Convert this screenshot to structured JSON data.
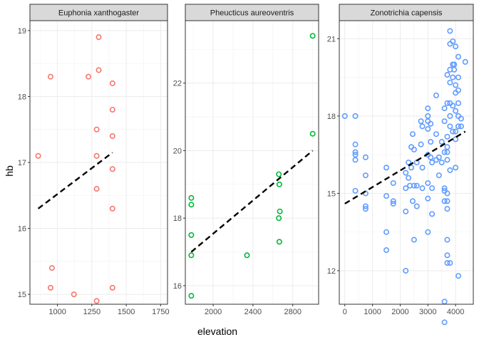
{
  "chart_data": {
    "type": "scatter",
    "layout": "faceted",
    "xlabel": "elevation",
    "ylabel": "hb",
    "grid": true,
    "panels": [
      {
        "title": "Euphonia xanthogaster",
        "color": "#F8766D",
        "xlim": [
          800,
          1800
        ],
        "ylim": [
          14.85,
          19.15
        ],
        "xticks": [
          1000,
          1250,
          1500,
          1750
        ],
        "yticks": [
          15,
          16,
          17,
          18,
          19
        ],
        "points": [
          {
            "x": 1300,
            "y": 18.9
          },
          {
            "x": 950,
            "y": 18.3
          },
          {
            "x": 1225,
            "y": 18.3
          },
          {
            "x": 1300,
            "y": 18.4
          },
          {
            "x": 1400,
            "y": 18.2
          },
          {
            "x": 1400,
            "y": 17.8
          },
          {
            "x": 1285,
            "y": 17.5
          },
          {
            "x": 1400,
            "y": 17.4
          },
          {
            "x": 860,
            "y": 17.1
          },
          {
            "x": 1285,
            "y": 17.1
          },
          {
            "x": 1400,
            "y": 16.9
          },
          {
            "x": 1285,
            "y": 16.6
          },
          {
            "x": 1400,
            "y": 16.3
          },
          {
            "x": 960,
            "y": 15.4
          },
          {
            "x": 950,
            "y": 15.1
          },
          {
            "x": 1400,
            "y": 15.1
          },
          {
            "x": 1120,
            "y": 15.0
          },
          {
            "x": 1285,
            "y": 14.9
          }
        ],
        "fit": {
          "x": [
            860,
            1400
          ],
          "y": [
            16.3,
            17.15
          ]
        }
      },
      {
        "title": "Pheucticus aureoventris",
        "color": "#00BA38",
        "xlim": [
          1720,
          3060
        ],
        "ylim": [
          15.45,
          23.85
        ],
        "xticks": [
          2000,
          2400,
          2800
        ],
        "yticks": [
          16,
          18,
          20,
          22
        ],
        "points": [
          {
            "x": 3000,
            "y": 23.4
          },
          {
            "x": 3000,
            "y": 20.5
          },
          {
            "x": 2660,
            "y": 19.3
          },
          {
            "x": 2665,
            "y": 19.0
          },
          {
            "x": 1780,
            "y": 18.6
          },
          {
            "x": 1780,
            "y": 18.4
          },
          {
            "x": 2670,
            "y": 18.2
          },
          {
            "x": 2660,
            "y": 18.0
          },
          {
            "x": 1780,
            "y": 17.5
          },
          {
            "x": 2665,
            "y": 17.3
          },
          {
            "x": 1780,
            "y": 16.9
          },
          {
            "x": 2340,
            "y": 16.9
          },
          {
            "x": 1780,
            "y": 15.7
          }
        ],
        "fit": {
          "x": [
            1780,
            3000
          ],
          "y": [
            17.0,
            20.0
          ]
        }
      },
      {
        "title": "Zonotrichia capensis",
        "color": "#619CFF",
        "xlim": [
          -200,
          4640
        ],
        "ylim": [
          10.7,
          21.7
        ],
        "xticks": [
          0,
          1000,
          2000,
          3000,
          4000
        ],
        "yticks": [
          12,
          15,
          18,
          21
        ],
        "points": [
          {
            "x": 0,
            "y": 18.0
          },
          {
            "x": 380,
            "y": 18.0
          },
          {
            "x": 380,
            "y": 16.9
          },
          {
            "x": 380,
            "y": 16.6
          },
          {
            "x": 380,
            "y": 16.5
          },
          {
            "x": 380,
            "y": 16.3
          },
          {
            "x": 380,
            "y": 15.1
          },
          {
            "x": 750,
            "y": 16.4
          },
          {
            "x": 750,
            "y": 15.7
          },
          {
            "x": 750,
            "y": 15.0
          },
          {
            "x": 750,
            "y": 14.5
          },
          {
            "x": 750,
            "y": 14.4
          },
          {
            "x": 1500,
            "y": 16.0
          },
          {
            "x": 1500,
            "y": 14.9
          },
          {
            "x": 1500,
            "y": 13.5
          },
          {
            "x": 1500,
            "y": 12.8
          },
          {
            "x": 1750,
            "y": 15.4
          },
          {
            "x": 1750,
            "y": 14.7
          },
          {
            "x": 1750,
            "y": 14.6
          },
          {
            "x": 2200,
            "y": 15.8
          },
          {
            "x": 2200,
            "y": 15.2
          },
          {
            "x": 2200,
            "y": 14.3
          },
          {
            "x": 2200,
            "y": 12.0
          },
          {
            "x": 2300,
            "y": 16.2
          },
          {
            "x": 2300,
            "y": 15.6
          },
          {
            "x": 2350,
            "y": 15.3
          },
          {
            "x": 2400,
            "y": 16.8
          },
          {
            "x": 2400,
            "y": 16.0
          },
          {
            "x": 2450,
            "y": 17.3
          },
          {
            "x": 2450,
            "y": 14.7
          },
          {
            "x": 2500,
            "y": 16.7
          },
          {
            "x": 2500,
            "y": 15.3
          },
          {
            "x": 2500,
            "y": 13.2
          },
          {
            "x": 2600,
            "y": 16.2
          },
          {
            "x": 2600,
            "y": 15.3
          },
          {
            "x": 2600,
            "y": 14.5
          },
          {
            "x": 2750,
            "y": 17.8
          },
          {
            "x": 2750,
            "y": 16.9
          },
          {
            "x": 2800,
            "y": 17.6
          },
          {
            "x": 2800,
            "y": 16.0
          },
          {
            "x": 2800,
            "y": 15.2
          },
          {
            "x": 3000,
            "y": 18.3
          },
          {
            "x": 3000,
            "y": 18.0
          },
          {
            "x": 3000,
            "y": 17.8
          },
          {
            "x": 3000,
            "y": 17.5
          },
          {
            "x": 3000,
            "y": 16.5
          },
          {
            "x": 3000,
            "y": 15.4
          },
          {
            "x": 3000,
            "y": 14.8
          },
          {
            "x": 3000,
            "y": 13.5
          },
          {
            "x": 3100,
            "y": 17.7
          },
          {
            "x": 3100,
            "y": 17.0
          },
          {
            "x": 3100,
            "y": 16.4
          },
          {
            "x": 3150,
            "y": 16.2
          },
          {
            "x": 3150,
            "y": 15.2
          },
          {
            "x": 3150,
            "y": 14.2
          },
          {
            "x": 3300,
            "y": 18.8
          },
          {
            "x": 3300,
            "y": 17.3
          },
          {
            "x": 3300,
            "y": 16.3
          },
          {
            "x": 3400,
            "y": 16.4
          },
          {
            "x": 3400,
            "y": 15.7
          },
          {
            "x": 3500,
            "y": 17.0
          },
          {
            "x": 3500,
            "y": 16.2
          },
          {
            "x": 3600,
            "y": 18.3
          },
          {
            "x": 3600,
            "y": 17.8
          },
          {
            "x": 3600,
            "y": 16.6
          },
          {
            "x": 3600,
            "y": 15.2
          },
          {
            "x": 3600,
            "y": 15.1
          },
          {
            "x": 3600,
            "y": 14.7
          },
          {
            "x": 3600,
            "y": 10.8
          },
          {
            "x": 3600,
            "y": 10.0
          },
          {
            "x": 3700,
            "y": 19.6
          },
          {
            "x": 3700,
            "y": 18.5
          },
          {
            "x": 3700,
            "y": 17.2
          },
          {
            "x": 3700,
            "y": 16.8
          },
          {
            "x": 3700,
            "y": 16.6
          },
          {
            "x": 3700,
            "y": 16.3
          },
          {
            "x": 3700,
            "y": 15.0
          },
          {
            "x": 3700,
            "y": 14.7
          },
          {
            "x": 3700,
            "y": 14.4
          },
          {
            "x": 3700,
            "y": 13.2
          },
          {
            "x": 3700,
            "y": 12.6
          },
          {
            "x": 3700,
            "y": 12.3
          },
          {
            "x": 3800,
            "y": 21.3
          },
          {
            "x": 3800,
            "y": 20.8
          },
          {
            "x": 3800,
            "y": 19.8
          },
          {
            "x": 3800,
            "y": 19.3
          },
          {
            "x": 3800,
            "y": 18.5
          },
          {
            "x": 3800,
            "y": 18.0
          },
          {
            "x": 3800,
            "y": 17.6
          },
          {
            "x": 3800,
            "y": 15.9
          },
          {
            "x": 3800,
            "y": 12.3
          },
          {
            "x": 3900,
            "y": 20.9
          },
          {
            "x": 3900,
            "y": 20.0
          },
          {
            "x": 3900,
            "y": 19.5
          },
          {
            "x": 3900,
            "y": 18.4
          },
          {
            "x": 3900,
            "y": 17.4
          },
          {
            "x": 3950,
            "y": 20.0
          },
          {
            "x": 3950,
            "y": 19.8
          },
          {
            "x": 4000,
            "y": 20.7
          },
          {
            "x": 4000,
            "y": 19.2
          },
          {
            "x": 4000,
            "y": 18.9
          },
          {
            "x": 4000,
            "y": 18.2
          },
          {
            "x": 4000,
            "y": 17.4
          },
          {
            "x": 4000,
            "y": 17.1
          },
          {
            "x": 4000,
            "y": 16.0
          },
          {
            "x": 4100,
            "y": 20.3
          },
          {
            "x": 4100,
            "y": 19.5
          },
          {
            "x": 4100,
            "y": 19.0
          },
          {
            "x": 4100,
            "y": 18.5
          },
          {
            "x": 4100,
            "y": 18.0
          },
          {
            "x": 4100,
            "y": 17.6
          },
          {
            "x": 4100,
            "y": 11.8
          },
          {
            "x": 4200,
            "y": 17.9
          },
          {
            "x": 4200,
            "y": 17.6
          },
          {
            "x": 4350,
            "y": 20.1
          }
        ],
        "fit": {
          "x": [
            0,
            4350
          ],
          "y": [
            14.6,
            17.4
          ]
        }
      }
    ]
  }
}
